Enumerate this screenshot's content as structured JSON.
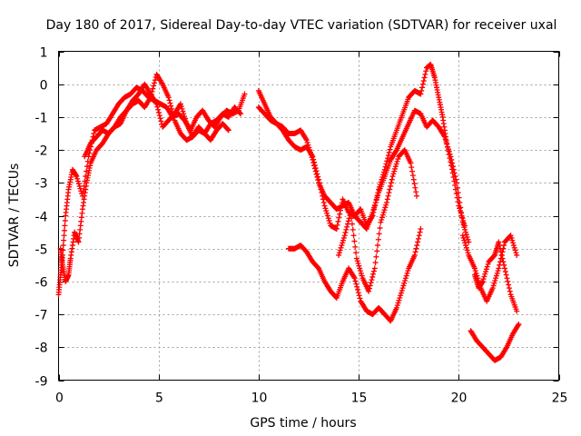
{
  "chart_data": {
    "type": "scatter",
    "title": "Day 180 of 2017, Sidereal Day-to-day VTEC variation (SDTVAR) for receiver uxal",
    "xlabel": "GPS time / hours",
    "ylabel": "SDTVAR / TECUs",
    "xlim": [
      0,
      25
    ],
    "ylim": [
      -9,
      1
    ],
    "xticks": [
      0,
      5,
      10,
      15,
      20,
      25
    ],
    "yticks": [
      1,
      0,
      -1,
      -2,
      -3,
      -4,
      -5,
      -6,
      -7,
      -8,
      -9
    ],
    "grid": true,
    "legend": "none",
    "marker": "+",
    "color": "#ff0000",
    "series": [
      {
        "x": [
          0.0,
          0.1,
          0.2,
          0.35,
          0.5,
          0.7,
          0.9,
          1.2,
          1.5,
          1.8,
          2.1,
          2.4,
          2.7,
          3.0,
          3.3,
          3.6,
          3.9,
          4.2,
          4.5,
          4.8,
          5.1,
          5.4,
          5.7,
          6.0,
          6.3,
          6.6,
          6.9,
          7.2,
          7.5,
          7.8,
          8.1,
          8.4,
          8.7,
          9.0,
          9.3
        ],
        "y": [
          -6.4,
          -5.8,
          -5.2,
          -4.0,
          -3.2,
          -2.6,
          -2.8,
          -3.4,
          -2.2,
          -1.4,
          -1.3,
          -1.2,
          -0.9,
          -0.6,
          -0.4,
          -0.3,
          -0.1,
          -0.2,
          -0.4,
          -0.5,
          -0.6,
          -0.7,
          -1.0,
          -0.9,
          -1.1,
          -1.4,
          -1.0,
          -0.8,
          -1.1,
          -1.3,
          -1.0,
          -0.8,
          -0.9,
          -0.8,
          -0.3
        ]
      },
      {
        "x": [
          0.1,
          0.2,
          0.35,
          0.5,
          0.6,
          0.8,
          1.0,
          1.2,
          1.4,
          1.6,
          1.9,
          2.2,
          2.5,
          2.8,
          3.1,
          3.4,
          3.7,
          4.0,
          4.3,
          4.6,
          4.9,
          5.2,
          5.5,
          5.8,
          6.1,
          6.4,
          6.7,
          7.0,
          7.3,
          7.6,
          7.9,
          8.2,
          8.5,
          8.8,
          9.1
        ],
        "y": [
          -5.0,
          -5.5,
          -6.0,
          -5.8,
          -5.3,
          -4.5,
          -4.8,
          -3.8,
          -3.0,
          -2.4,
          -2.0,
          -1.8,
          -1.5,
          -1.3,
          -1.2,
          -0.8,
          -0.6,
          -0.5,
          -0.7,
          -0.4,
          0.3,
          0.0,
          -0.4,
          -1.1,
          -1.5,
          -1.7,
          -1.6,
          -1.4,
          -1.5,
          -1.2,
          -1.1,
          -0.9,
          -1.0,
          -0.7,
          -0.9
        ]
      },
      {
        "x": [
          1.3,
          1.6,
          1.9,
          2.2,
          2.5,
          2.8,
          3.1,
          3.4,
          3.7,
          4.0,
          4.3,
          4.6,
          4.9,
          5.2,
          5.5,
          5.8,
          6.1,
          6.4,
          6.7,
          7.0,
          7.3,
          7.6,
          7.9,
          8.2,
          8.5
        ],
        "y": [
          -2.2,
          -1.8,
          -1.6,
          -1.4,
          -1.5,
          -1.3,
          -1.0,
          -0.8,
          -0.5,
          -0.3,
          0.0,
          -0.3,
          -0.6,
          -1.3,
          -1.1,
          -0.9,
          -0.6,
          -1.2,
          -1.6,
          -1.3,
          -1.5,
          -1.7,
          -1.4,
          -1.2,
          -1.4
        ]
      },
      {
        "x": [
          10.0,
          10.3,
          10.6,
          10.9,
          11.2,
          11.5,
          11.8,
          12.1,
          12.4,
          12.7,
          13.0,
          13.3,
          13.6,
          13.9,
          14.2,
          14.5,
          14.8,
          15.1,
          15.4,
          15.7,
          16.0,
          16.3,
          16.6,
          16.9,
          17.2,
          17.5,
          17.8,
          18.1,
          18.4,
          18.6,
          18.8,
          19.0,
          19.2,
          19.4,
          19.7,
          20.0,
          20.3
        ],
        "y": [
          -0.2,
          -0.6,
          -1.0,
          -1.2,
          -1.4,
          -1.7,
          -1.9,
          -2.0,
          -1.9,
          -2.2,
          -2.9,
          -3.7,
          -4.3,
          -4.4,
          -3.5,
          -3.9,
          -4.0,
          -3.8,
          -4.3,
          -4.0,
          -3.2,
          -2.6,
          -1.9,
          -1.4,
          -0.9,
          -0.4,
          -0.2,
          -0.3,
          0.5,
          0.6,
          0.2,
          -0.4,
          -1.0,
          -1.8,
          -2.7,
          -3.7,
          -4.3
        ]
      },
      {
        "x": [
          10.0,
          10.3,
          10.6,
          10.9,
          11.2,
          11.5,
          11.8,
          12.1,
          12.4,
          12.7,
          13.0,
          13.3,
          13.6,
          13.9,
          14.2,
          14.5,
          14.8,
          15.1,
          15.4,
          15.7,
          16.0,
          16.3,
          16.6,
          16.9,
          17.2,
          17.5,
          17.8,
          18.1,
          18.4,
          18.7,
          19.0,
          19.3,
          19.6,
          19.9,
          20.2,
          20.5
        ],
        "y": [
          -0.7,
          -0.9,
          -1.1,
          -1.2,
          -1.3,
          -1.5,
          -1.5,
          -1.4,
          -1.7,
          -2.3,
          -3.0,
          -3.4,
          -3.6,
          -3.8,
          -3.7,
          -3.6,
          -4.0,
          -4.2,
          -4.4,
          -3.9,
          -3.3,
          -2.8,
          -2.3,
          -2.0,
          -1.6,
          -1.2,
          -0.8,
          -0.9,
          -1.3,
          -1.1,
          -1.3,
          -1.6,
          -2.2,
          -3.0,
          -4.2,
          -4.8
        ]
      },
      {
        "x": [
          11.5,
          11.8,
          12.1,
          12.4,
          12.7,
          13.0,
          13.3,
          13.6,
          13.9,
          14.2,
          14.5,
          14.8,
          15.1,
          15.4,
          15.7,
          16.0,
          16.3,
          16.6,
          16.9,
          17.2,
          17.5,
          17.8,
          18.1
        ],
        "y": [
          -5.0,
          -5.0,
          -4.9,
          -5.1,
          -5.4,
          -5.6,
          -6.0,
          -6.3,
          -6.5,
          -6.0,
          -5.6,
          -5.9,
          -6.6,
          -6.9,
          -7.0,
          -6.8,
          -7.0,
          -7.2,
          -6.8,
          -6.2,
          -5.6,
          -5.2,
          -4.4
        ]
      },
      {
        "x": [
          14.0,
          14.3,
          14.6,
          14.9,
          15.2,
          15.5,
          15.8,
          16.1,
          16.4,
          16.7,
          17.0,
          17.3,
          17.6,
          17.9
        ],
        "y": [
          -5.2,
          -4.6,
          -3.9,
          -5.3,
          -5.9,
          -6.3,
          -5.6,
          -4.2,
          -3.6,
          -2.8,
          -2.2,
          -2.0,
          -2.4,
          -3.4
        ]
      },
      {
        "x": [
          20.2,
          20.5,
          20.8,
          21.1,
          21.4,
          21.7,
          22.0,
          22.3,
          22.6,
          22.9
        ],
        "y": [
          -4.6,
          -5.2,
          -5.6,
          -6.2,
          -6.6,
          -6.2,
          -5.6,
          -4.8,
          -4.6,
          -5.2
        ]
      },
      {
        "x": [
          20.8,
          21.0,
          21.2,
          21.5,
          21.8,
          22.0,
          22.3,
          22.6,
          22.9
        ],
        "y": [
          -5.8,
          -6.2,
          -6.0,
          -5.4,
          -5.2,
          -4.8,
          -5.6,
          -6.4,
          -6.9
        ]
      },
      {
        "x": [
          20.6,
          20.9,
          21.2,
          21.5,
          21.8,
          22.1,
          22.4,
          22.7,
          23.0
        ],
        "y": [
          -7.5,
          -7.8,
          -8.0,
          -8.2,
          -8.4,
          -8.3,
          -8.0,
          -7.6,
          -7.3
        ]
      }
    ]
  }
}
